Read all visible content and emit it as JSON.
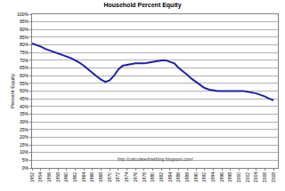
{
  "chart_data": {
    "type": "line",
    "title": "Household Percent Equity",
    "y_label": "Percent Equity",
    "annotation": "http://calculatedriskblog.blogspot.com/",
    "color": "#1f1fa8",
    "grid": true,
    "x": [
      1952,
      1953,
      1954,
      1955,
      1956,
      1957,
      1958,
      1959,
      1960,
      1961,
      1962,
      1963,
      1964,
      1965,
      1966,
      1967,
      1968,
      1969,
      1970,
      1971,
      1972,
      1973,
      1974,
      1975,
      1976,
      1977,
      1978,
      1979,
      1980,
      1981,
      1982,
      1983,
      1984,
      1985,
      1986,
      1987,
      1988,
      1989,
      1990,
      1991,
      1992,
      1993,
      1994,
      1995,
      1996,
      1997,
      1998,
      1999,
      2000,
      2001,
      2002,
      2003,
      2004,
      2005,
      2006,
      2007,
      2008
    ],
    "values": [
      81,
      80,
      79,
      77.5,
      76.5,
      75.5,
      74.5,
      73.5,
      72.5,
      71.5,
      70,
      68.5,
      66.5,
      64,
      61.5,
      59.5,
      57.5,
      56,
      57,
      60,
      64,
      66.5,
      67,
      67.5,
      68,
      68,
      68,
      68.5,
      69,
      69.5,
      70,
      70,
      69,
      68,
      65,
      63,
      60.5,
      58,
      56,
      53.5,
      52,
      51,
      50.5,
      50,
      50,
      50,
      50,
      50,
      50,
      50,
      49.5,
      49,
      48.5,
      47.5,
      46.5,
      45,
      44
    ],
    "xlim": [
      1952,
      2009
    ],
    "xticks": [
      1952,
      1954,
      1956,
      1958,
      1960,
      1962,
      1964,
      1966,
      1968,
      1970,
      1972,
      1974,
      1976,
      1978,
      1980,
      1982,
      1984,
      1986,
      1988,
      1990,
      1992,
      1994,
      1996,
      1998,
      2000,
      2002,
      2004,
      2006,
      2008
    ],
    "ylim": [
      0,
      100
    ],
    "yticks": [
      {
        "value": 0,
        "label": "0%"
      },
      {
        "value": 5,
        "label": "5%"
      },
      {
        "value": 10,
        "label": "10%"
      },
      {
        "value": 15,
        "label": "15%"
      },
      {
        "value": 20,
        "label": "20%"
      },
      {
        "value": 25,
        "label": "25%"
      },
      {
        "value": 30,
        "label": "30%"
      },
      {
        "value": 35,
        "label": "35%"
      },
      {
        "value": 40,
        "label": "40%"
      },
      {
        "value": 45,
        "label": "45%"
      },
      {
        "value": 50,
        "label": "50%"
      },
      {
        "value": 55,
        "label": "55%"
      },
      {
        "value": 60,
        "label": "60%"
      },
      {
        "value": 65,
        "label": "65%"
      },
      {
        "value": 70,
        "label": "70%"
      },
      {
        "value": 75,
        "label": "75%"
      },
      {
        "value": 80,
        "label": "80%"
      },
      {
        "value": 85,
        "label": "85%"
      },
      {
        "value": 90,
        "label": "90%"
      },
      {
        "value": 95,
        "label": "95%"
      },
      {
        "value": 100,
        "label": "100%"
      }
    ]
  }
}
